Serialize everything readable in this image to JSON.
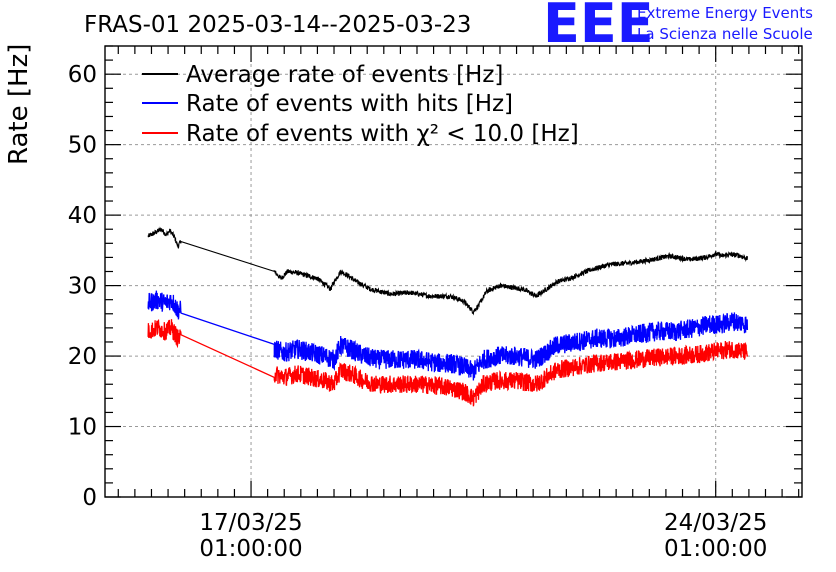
{
  "chart_data": {
    "type": "line",
    "title": "FRAS-01 2025-03-14--2025-03-23",
    "ylabel": "Rate [Hz]",
    "xlabel": "",
    "ylim": [
      0,
      64
    ],
    "xlim_days": [
      -2.2,
      8.3
    ],
    "y_ticks": [
      0,
      10,
      20,
      30,
      40,
      50,
      60
    ],
    "x_ticks": [
      {
        "day": 0,
        "line1": "17/03/25",
        "line2": "01:00:00"
      },
      {
        "day": 7,
        "line1": "24/03/25",
        "line2": "01:00:00"
      }
    ],
    "grid": true,
    "legend_placement": "top-left",
    "x_unit": "days since 17/03/25 01:00:00",
    "series": [
      {
        "name": "Average rate of events [Hz]",
        "legend_label": "Average rate of events [Hz]",
        "color": "#000000",
        "noise": 0.35,
        "x": [
          -1.55,
          -1.45,
          -1.35,
          -1.28,
          -1.22,
          -1.15,
          -1.1,
          -1.05,
          0.35,
          0.45,
          0.55,
          0.7,
          1.0,
          1.2,
          1.25,
          1.35,
          1.45,
          1.6,
          1.8,
          2.1,
          2.4,
          2.7,
          3.0,
          3.2,
          3.35,
          3.45,
          3.55,
          3.75,
          4.1,
          4.3,
          4.45,
          4.6,
          4.85,
          5.1,
          5.4,
          5.7,
          6.0,
          6.3,
          6.6,
          6.85,
          7.0,
          7.1,
          7.2,
          7.35,
          7.48
        ],
        "y": [
          37.0,
          37.5,
          38.0,
          37.2,
          37.8,
          36.8,
          35.5,
          36.5,
          32.0,
          31.0,
          32.0,
          31.8,
          31.0,
          29.5,
          30.5,
          32.0,
          31.5,
          30.5,
          29.5,
          28.8,
          29.0,
          28.5,
          28.5,
          27.8,
          26.3,
          27.5,
          29.2,
          30.0,
          29.5,
          28.5,
          29.5,
          30.5,
          31.2,
          32.2,
          33.0,
          33.2,
          33.6,
          34.2,
          33.7,
          34.0,
          34.5,
          34.2,
          34.4,
          34.3,
          33.8
        ]
      },
      {
        "name": "Rate of events with hits [Hz]",
        "legend_label": "Rate of events with hits [Hz]",
        "color": "#0000ff",
        "noise": 1.4,
        "x": [
          -1.55,
          -1.4,
          -1.3,
          -1.2,
          -1.1,
          -1.05,
          0.35,
          0.5,
          0.7,
          0.9,
          1.1,
          1.25,
          1.35,
          1.5,
          1.7,
          1.9,
          2.2,
          2.5,
          2.8,
          3.0,
          3.2,
          3.35,
          3.5,
          3.7,
          4.0,
          4.3,
          4.45,
          4.6,
          4.9,
          5.2,
          5.5,
          5.8,
          6.1,
          6.4,
          6.7,
          6.9,
          7.1,
          7.25,
          7.48
        ],
        "y": [
          27.5,
          28.0,
          27.5,
          28.0,
          26.5,
          26.5,
          21.0,
          20.5,
          21.0,
          20.5,
          20.0,
          19.5,
          21.5,
          21.0,
          20.0,
          19.5,
          19.5,
          19.5,
          19.0,
          19.0,
          18.5,
          17.8,
          19.5,
          20.0,
          20.0,
          19.5,
          20.5,
          21.5,
          22.0,
          22.5,
          22.5,
          23.0,
          23.5,
          23.5,
          24.0,
          24.5,
          24.5,
          25.0,
          24.5
        ]
      },
      {
        "name": "Rate of events with chi2 < 10.0 [Hz]",
        "legend_label": "Rate of events with χ² < 10.0 [Hz]",
        "color": "#ff0000",
        "noise": 1.3,
        "x": [
          -1.55,
          -1.4,
          -1.3,
          -1.2,
          -1.1,
          -1.05,
          0.35,
          0.5,
          0.7,
          0.9,
          1.1,
          1.25,
          1.35,
          1.5,
          1.7,
          1.9,
          2.2,
          2.5,
          2.8,
          3.0,
          3.2,
          3.35,
          3.5,
          3.7,
          4.0,
          4.3,
          4.45,
          4.6,
          4.9,
          5.2,
          5.5,
          5.8,
          6.1,
          6.4,
          6.7,
          6.9,
          7.1,
          7.25,
          7.48
        ],
        "y": [
          23.5,
          24.0,
          23.5,
          24.0,
          22.5,
          22.5,
          17.5,
          17.0,
          17.5,
          17.0,
          16.5,
          16.0,
          18.0,
          17.5,
          16.5,
          16.0,
          16.0,
          16.0,
          15.8,
          15.5,
          15.0,
          14.0,
          16.0,
          16.5,
          16.5,
          16.0,
          17.0,
          18.0,
          18.5,
          19.0,
          19.2,
          19.5,
          19.8,
          20.0,
          20.2,
          20.5,
          20.8,
          21.0,
          20.5
        ]
      }
    ]
  },
  "logo": {
    "mark": "EEE",
    "line1": "Extreme Energy Events",
    "line2": "La Scienza nelle Scuole",
    "color": "#1a1aff"
  }
}
